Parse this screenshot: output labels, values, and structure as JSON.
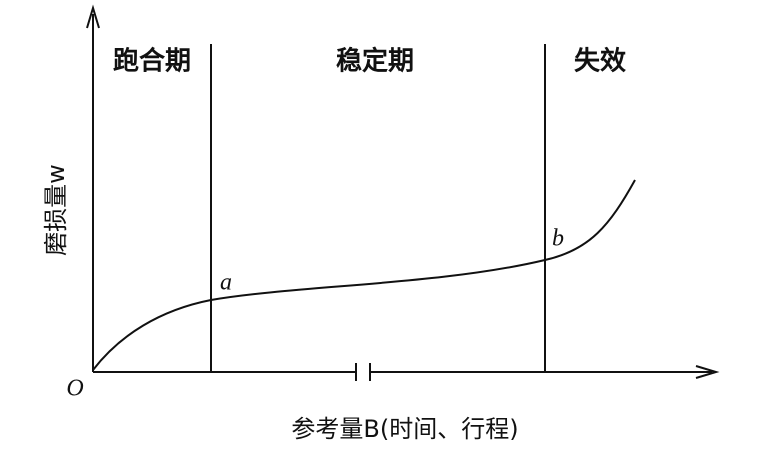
{
  "phases": [
    "跑合期",
    "稳定期",
    "失效"
  ],
  "axes": {
    "y_label": "磨损量w",
    "x_label": "参考量B(时间、行程)",
    "origin": "O"
  },
  "points": [
    "a",
    "b"
  ]
}
